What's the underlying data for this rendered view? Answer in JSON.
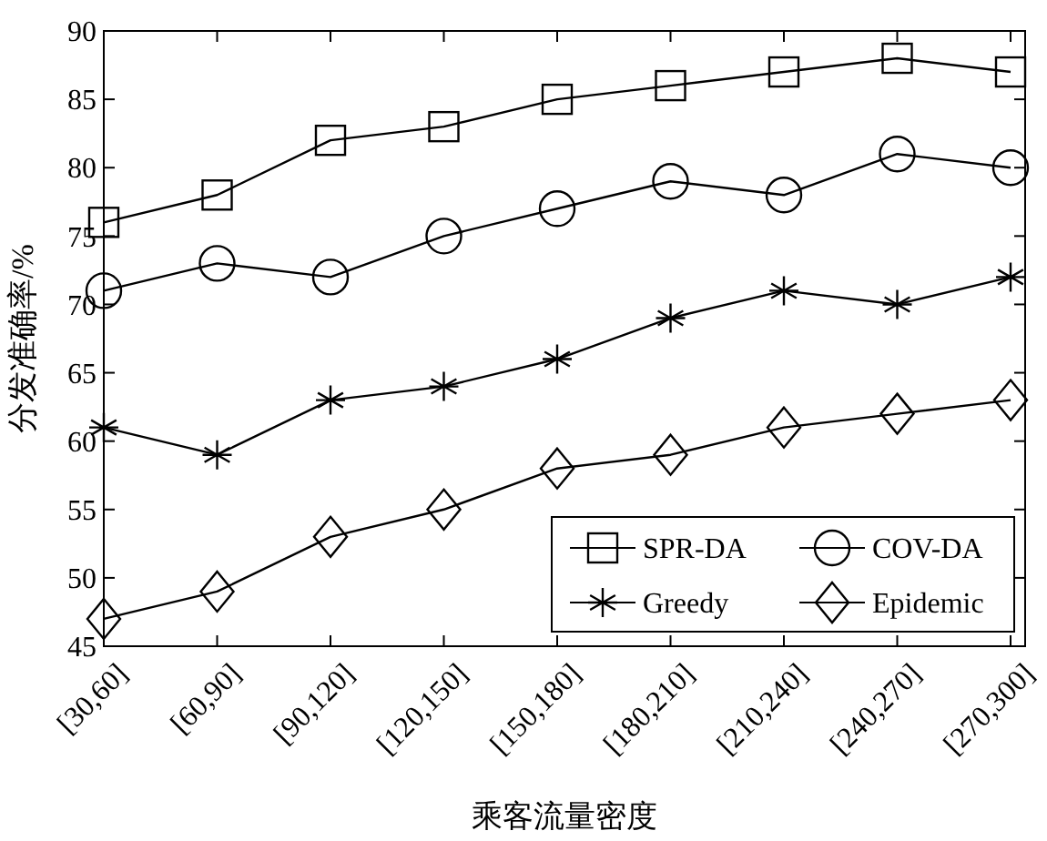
{
  "chart_data": {
    "type": "line",
    "xlabel": "乘客流量密度",
    "ylabel": "分发准确率/%",
    "categories": [
      "[30,60]",
      "[60,90]",
      "[90,120]",
      "[120,150]",
      "[150,180]",
      "[180,210]",
      "[210,240]",
      "[240,270]",
      "[270,300]"
    ],
    "series": [
      {
        "name": "SPR-DA",
        "color": "#000000",
        "marker": "square",
        "values": [
          76,
          78,
          82,
          83,
          85,
          86,
          87,
          88,
          87
        ]
      },
      {
        "name": "COV-DA",
        "color": "#000000",
        "marker": "circle",
        "values": [
          71,
          73,
          72,
          75,
          77,
          79,
          78,
          81,
          80
        ]
      },
      {
        "name": "Greedy",
        "color": "#000000",
        "marker": "cross",
        "values": [
          61,
          59,
          63,
          64,
          66,
          69,
          71,
          70,
          72
        ]
      },
      {
        "name": "Epidemic",
        "color": "#000000",
        "marker": "diamond",
        "values": [
          47,
          49,
          53,
          55,
          58,
          59,
          61,
          62,
          63
        ]
      }
    ],
    "ylim": [
      45,
      90
    ],
    "yticks": [
      45,
      50,
      55,
      60,
      65,
      70,
      75,
      80,
      85,
      90
    ],
    "grid": false,
    "legend": "bottom right",
    "line_style": "solid"
  }
}
